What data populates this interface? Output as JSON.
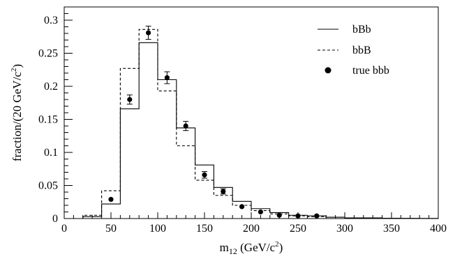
{
  "chart_data": {
    "type": "line",
    "xlabel_main": "m",
    "xlabel_sub": "12",
    "xlabel_unit_pre": " (GeV/c",
    "xlabel_unit_sup": "2",
    "xlabel_unit_post": ")",
    "ylabel_pre": "fraction/(20 GeV/c",
    "ylabel_sup": "2",
    "ylabel_post": ")",
    "xlim": [
      0,
      400
    ],
    "ylim": [
      0,
      0.32
    ],
    "xticks": [
      0,
      50,
      100,
      150,
      200,
      250,
      300,
      350,
      400
    ],
    "xtick_labels": [
      "0",
      "50",
      "100",
      "150",
      "200",
      "250",
      "300",
      "350",
      "400"
    ],
    "yticks": [
      0,
      0.05,
      0.1,
      0.15,
      0.2,
      0.25,
      0.3
    ],
    "ytick_labels": [
      "0",
      "0.05",
      "0.1",
      "0.15",
      "0.2",
      "0.25",
      "0.3"
    ],
    "bin_edges": [
      20,
      40,
      60,
      80,
      100,
      120,
      140,
      160,
      180,
      200,
      220,
      240,
      260,
      280,
      300,
      320,
      340,
      360,
      380,
      400
    ],
    "series": [
      {
        "name": "bBb",
        "style": "solid",
        "values": [
          0.003,
          0.022,
          0.166,
          0.266,
          0.21,
          0.137,
          0.081,
          0.047,
          0.026,
          0.015,
          0.009,
          0.005,
          0.004,
          0.002,
          0.001,
          0.001,
          0.0005,
          0.0003,
          0.0002
        ]
      },
      {
        "name": "bbB",
        "style": "dashed",
        "values": [
          0.005,
          0.042,
          0.227,
          0.286,
          0.193,
          0.11,
          0.058,
          0.035,
          0.02,
          0.012,
          0.007,
          0.004,
          0.003,
          0.002,
          0.001,
          0.0005,
          0.0003,
          0.0002,
          0.0001
        ]
      },
      {
        "name": "true bbb",
        "style": "markers",
        "x": [
          50,
          70,
          90,
          110,
          130,
          150,
          170,
          190,
          210,
          230,
          250,
          270
        ],
        "values": [
          0.029,
          0.18,
          0.281,
          0.213,
          0.14,
          0.066,
          0.041,
          0.018,
          0.01,
          0.005,
          0.004,
          0.004
        ],
        "errors": [
          0.002,
          0.007,
          0.01,
          0.009,
          0.007,
          0.005,
          0.004,
          0.002,
          0.0015,
          0.001,
          0.001,
          0.001
        ]
      }
    ],
    "legend": {
      "placement": "top-right",
      "entries": [
        "bBb",
        "bbB",
        "true bbb"
      ]
    },
    "grid": false
  }
}
